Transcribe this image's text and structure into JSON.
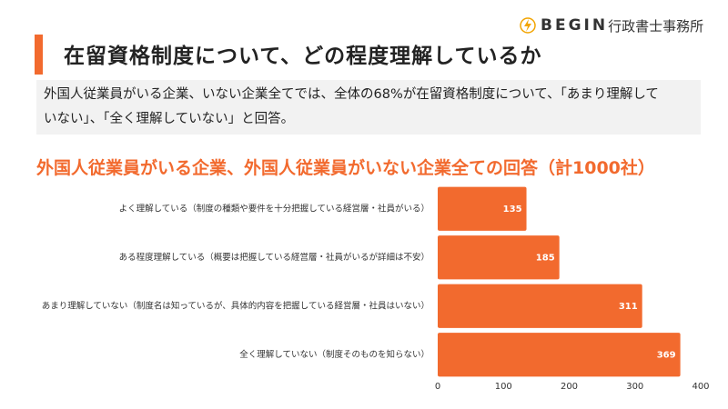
{
  "logo": {
    "brand": "BEGIN",
    "suffix": "行政書士事務所"
  },
  "heading": "在留資格制度について、どの程度理解しているか",
  "summary": "外国人従業員がいる企業、いない企業全てでは、全体の68%が在留資格制度について、「あまり理解していない」、「全く理解していない」と回答。",
  "chart_data": {
    "type": "hbar",
    "title": "外国人従業員がいる企業、外国人従業員がいない企業全ての回答（計1000社）",
    "categories": [
      "よく理解している（制度の種類や要件を十分把握している経営層・社員がいる）",
      "ある程度理解している（概要は把握している経営層・社員がいるが詳細は不安）",
      "あまり理解していない（制度名は知っているが、具体的内容を把握している経営層・社員はいない）",
      "全く理解していない（制度そのものを知らない）"
    ],
    "values": [
      135,
      185,
      311,
      369
    ],
    "color": "#f26a2e",
    "xlim": [
      0,
      400
    ],
    "xticks": [
      0,
      100,
      200,
      300,
      400
    ],
    "grid": false
  }
}
